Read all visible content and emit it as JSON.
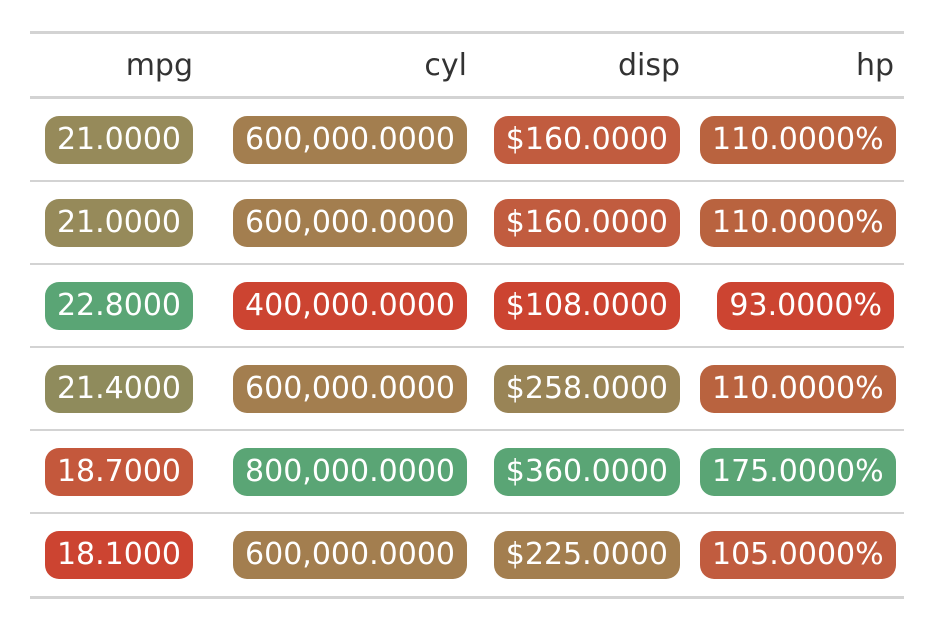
{
  "columns": [
    "mpg",
    "cyl",
    "disp",
    "hp"
  ],
  "rows": [
    {
      "mpg": {
        "text": "21.0000",
        "color": "#968a5a"
      },
      "cyl": {
        "text": "600,000.0000",
        "color": "#a37e4f"
      },
      "disp": {
        "text": "$160.0000",
        "color": "#c15c3f"
      },
      "hp": {
        "text": "110.0000%",
        "color": "#b9633f"
      }
    },
    {
      "mpg": {
        "text": "21.0000",
        "color": "#968a5a"
      },
      "cyl": {
        "text": "600,000.0000",
        "color": "#a37e4f"
      },
      "disp": {
        "text": "$160.0000",
        "color": "#c15c3f"
      },
      "hp": {
        "text": "110.0000%",
        "color": "#b9633f"
      }
    },
    {
      "mpg": {
        "text": "22.8000",
        "color": "#5aa575"
      },
      "cyl": {
        "text": "400,000.0000",
        "color": "#cc4431"
      },
      "disp": {
        "text": "$108.0000",
        "color": "#cc4431"
      },
      "hp": {
        "text": "93.0000%",
        "color": "#cc4431"
      }
    },
    {
      "mpg": {
        "text": "21.4000",
        "color": "#8f8b5c"
      },
      "cyl": {
        "text": "600,000.0000",
        "color": "#a37e4f"
      },
      "disp": {
        "text": "$258.0000",
        "color": "#998456"
      },
      "hp": {
        "text": "110.0000%",
        "color": "#b9633f"
      }
    },
    {
      "mpg": {
        "text": "18.7000",
        "color": "#c4583c"
      },
      "cyl": {
        "text": "800,000.0000",
        "color": "#5aa575"
      },
      "disp": {
        "text": "$360.0000",
        "color": "#5aa575"
      },
      "hp": {
        "text": "175.0000%",
        "color": "#5aa575"
      }
    },
    {
      "mpg": {
        "text": "18.1000",
        "color": "#cc4431"
      },
      "cyl": {
        "text": "600,000.0000",
        "color": "#a37e4f"
      },
      "disp": {
        "text": "$225.0000",
        "color": "#a37e4f"
      },
      "hp": {
        "text": "105.0000%",
        "color": "#c15c3f"
      }
    }
  ]
}
